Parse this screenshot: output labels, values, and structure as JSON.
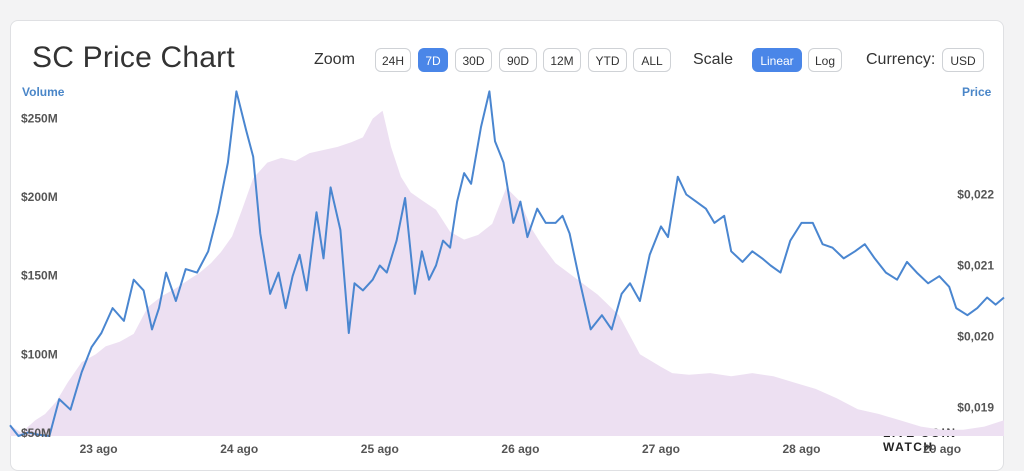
{
  "header": {
    "title": "SC Price Chart",
    "zoom_label": "Zoom",
    "zoom_options": [
      "24H",
      "7D",
      "30D",
      "90D",
      "12M",
      "YTD",
      "ALL"
    ],
    "zoom_selected": "7D",
    "scale_label": "Scale",
    "scale_options": [
      "Linear",
      "Log"
    ],
    "scale_selected": "Linear",
    "currency_label": "Currency:",
    "currency_value": "USD"
  },
  "brand": "LIVE COIN WATCH",
  "colors": {
    "accent": "#4a86e8",
    "price_line": "#4a86d0",
    "volume_fill": "#ede0f2"
  },
  "chart_data": {
    "type": "line",
    "left_axis_title": "Volume",
    "right_axis_title": "Price",
    "x_tick_labels": [
      "23 ago",
      "24 ago",
      "25 ago",
      "26 ago",
      "27 ago",
      "28 ago",
      "29 ago"
    ],
    "x_tick_days": [
      1,
      2,
      3,
      4,
      5,
      6,
      7
    ],
    "x_range": [
      0.37,
      7.44
    ],
    "volume_ticks": [
      "$50M",
      "$100M",
      "$150M",
      "$200M",
      "$250M"
    ],
    "volume_tick_values": [
      50,
      100,
      150,
      200,
      250
    ],
    "volume_range": [
      48,
      265
    ],
    "volume_unit": "M USD",
    "price_ticks": [
      "$0,019",
      "$0,020",
      "$0,021",
      "$0,022"
    ],
    "price_tick_values": [
      0.019,
      0.02,
      0.021,
      0.022
    ],
    "price_range": [
      0.0186,
      0.0234
    ],
    "series": [
      {
        "name": "Price",
        "axis": "right",
        "x": [
          0.37,
          0.43,
          0.5,
          0.57,
          0.65,
          0.72,
          0.8,
          0.88,
          0.95,
          1.02,
          1.1,
          1.18,
          1.25,
          1.32,
          1.38,
          1.43,
          1.48,
          1.55,
          1.62,
          1.7,
          1.78,
          1.85,
          1.92,
          1.98,
          2.05,
          2.1,
          2.15,
          2.22,
          2.28,
          2.33,
          2.38,
          2.43,
          2.48,
          2.55,
          2.6,
          2.65,
          2.72,
          2.78,
          2.82,
          2.88,
          2.95,
          3.0,
          3.05,
          3.12,
          3.18,
          3.25,
          3.3,
          3.35,
          3.4,
          3.45,
          3.5,
          3.55,
          3.6,
          3.65,
          3.72,
          3.78,
          3.82,
          3.88,
          3.95,
          4.0,
          4.05,
          4.12,
          4.18,
          4.25,
          4.3,
          4.35,
          4.42,
          4.5,
          4.58,
          4.65,
          4.72,
          4.78,
          4.85,
          4.92,
          5.0,
          5.05,
          5.12,
          5.18,
          5.25,
          5.32,
          5.38,
          5.45,
          5.5,
          5.58,
          5.65,
          5.72,
          5.78,
          5.85,
          5.92,
          6.0,
          6.08,
          6.15,
          6.22,
          6.3,
          6.38,
          6.45,
          6.52,
          6.6,
          6.68,
          6.75,
          6.82,
          6.9,
          6.98,
          7.05,
          7.1,
          7.18,
          7.25,
          7.32,
          7.38,
          7.44
        ],
        "values": [
          0.01875,
          0.0186,
          0.01865,
          0.01862,
          0.0186,
          0.01912,
          0.01897,
          0.0195,
          0.01985,
          0.02005,
          0.0204,
          0.02022,
          0.0208,
          0.02065,
          0.0201,
          0.0204,
          0.0209,
          0.0205,
          0.02095,
          0.0209,
          0.0212,
          0.02175,
          0.02245,
          0.02345,
          0.0229,
          0.02253,
          0.02145,
          0.0206,
          0.0209,
          0.0204,
          0.02085,
          0.02115,
          0.02065,
          0.02175,
          0.0211,
          0.0221,
          0.0215,
          0.02005,
          0.02075,
          0.02065,
          0.0208,
          0.021,
          0.0209,
          0.02135,
          0.02195,
          0.0206,
          0.0212,
          0.0208,
          0.021,
          0.02135,
          0.02125,
          0.0219,
          0.0223,
          0.02215,
          0.02295,
          0.02345,
          0.02275,
          0.02245,
          0.0216,
          0.0219,
          0.0214,
          0.0218,
          0.0216,
          0.0216,
          0.0217,
          0.02145,
          0.0208,
          0.0201,
          0.0203,
          0.0201,
          0.0206,
          0.02075,
          0.0205,
          0.02115,
          0.02155,
          0.0214,
          0.02225,
          0.022,
          0.0219,
          0.0218,
          0.0216,
          0.0217,
          0.0212,
          0.02105,
          0.0212,
          0.0211,
          0.021,
          0.0209,
          0.02135,
          0.0216,
          0.0216,
          0.0213,
          0.02125,
          0.0211,
          0.0212,
          0.0213,
          0.0211,
          0.0209,
          0.0208,
          0.02105,
          0.0209,
          0.02075,
          0.02085,
          0.0207,
          0.0204,
          0.0203,
          0.0204,
          0.02055,
          0.02045,
          0.02055
        ]
      },
      {
        "name": "Volume",
        "axis": "left",
        "x": [
          0.37,
          0.45,
          0.55,
          0.62,
          0.7,
          0.78,
          0.88,
          0.98,
          1.05,
          1.15,
          1.25,
          1.35,
          1.45,
          1.55,
          1.65,
          1.72,
          1.8,
          1.87,
          1.95,
          2.02,
          2.1,
          2.2,
          2.3,
          2.4,
          2.5,
          2.6,
          2.7,
          2.8,
          2.88,
          2.95,
          3.02,
          3.08,
          3.15,
          3.22,
          3.3,
          3.4,
          3.5,
          3.6,
          3.7,
          3.8,
          3.9,
          4.0,
          4.08,
          4.15,
          4.25,
          4.4,
          4.55,
          4.7,
          4.85,
          5.0,
          5.08,
          5.2,
          5.35,
          5.5,
          5.65,
          5.8,
          5.95,
          6.1,
          6.25,
          6.4,
          6.55,
          6.7,
          6.85,
          7.0,
          7.15,
          7.3,
          7.44
        ],
        "values": [
          55,
          50,
          58,
          62,
          70,
          82,
          95,
          100,
          105,
          108,
          113,
          130,
          137,
          142,
          148,
          152,
          158,
          165,
          175,
          192,
          212,
          222,
          225,
          223,
          228,
          230,
          232,
          235,
          238,
          250,
          255,
          232,
          213,
          203,
          198,
          192,
          178,
          173,
          176,
          183,
          206,
          197,
          180,
          170,
          158,
          148,
          138,
          125,
          100,
          92,
          88,
          87,
          88,
          86,
          88,
          86,
          82,
          78,
          72,
          65,
          62,
          58,
          54,
          52,
          52,
          54,
          58
        ]
      }
    ]
  }
}
